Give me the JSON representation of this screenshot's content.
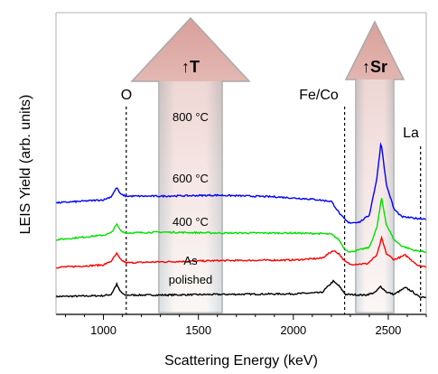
{
  "chart_data": {
    "type": "line",
    "title": "",
    "xlabel": "Scattering Energy (keV)",
    "ylabel": "LEIS Yield (arb. units)",
    "xlim": [
      750,
      2700
    ],
    "x_ticks": [
      1000,
      1500,
      2000,
      2500
    ],
    "y_ticks": [],
    "grid": false,
    "legend": "none",
    "series": [
      {
        "name": "As polished",
        "color": "#000000",
        "offset": 0.0,
        "points": [
          [
            750,
            0.05
          ],
          [
            1000,
            0.08
          ],
          [
            1040,
            0.12
          ],
          [
            1070,
            0.45
          ],
          [
            1085,
            0.25
          ],
          [
            1110,
            0.1
          ],
          [
            1300,
            0.1
          ],
          [
            1600,
            0.12
          ],
          [
            2000,
            0.14
          ],
          [
            2150,
            0.18
          ],
          [
            2210,
            0.55
          ],
          [
            2240,
            0.4
          ],
          [
            2275,
            0.12
          ],
          [
            2380,
            0.1
          ],
          [
            2430,
            0.18
          ],
          [
            2460,
            0.38
          ],
          [
            2490,
            0.2
          ],
          [
            2530,
            0.12
          ],
          [
            2590,
            0.34
          ],
          [
            2630,
            0.2
          ],
          [
            2660,
            0.05
          ],
          [
            2700,
            0.03
          ]
        ]
      },
      {
        "name": "400 °C",
        "color": "#ff0000",
        "offset": 1.0,
        "points": [
          [
            750,
            0.0
          ],
          [
            1000,
            0.08
          ],
          [
            1040,
            0.2
          ],
          [
            1070,
            0.45
          ],
          [
            1090,
            0.25
          ],
          [
            1120,
            0.15
          ],
          [
            1300,
            0.18
          ],
          [
            1600,
            0.22
          ],
          [
            2000,
            0.24
          ],
          [
            2150,
            0.3
          ],
          [
            2210,
            0.55
          ],
          [
            2240,
            0.45
          ],
          [
            2270,
            0.2
          ],
          [
            2300,
            0.1
          ],
          [
            2390,
            0.12
          ],
          [
            2440,
            0.4
          ],
          [
            2465,
            0.95
          ],
          [
            2490,
            0.45
          ],
          [
            2530,
            0.25
          ],
          [
            2590,
            0.4
          ],
          [
            2630,
            0.2
          ],
          [
            2660,
            0.05
          ],
          [
            2700,
            0.03
          ]
        ]
      },
      {
        "name": "600 °C",
        "color": "#00e000",
        "offset": 1.9,
        "points": [
          [
            750,
            0.0
          ],
          [
            1000,
            0.15
          ],
          [
            1040,
            0.22
          ],
          [
            1070,
            0.5
          ],
          [
            1090,
            0.3
          ],
          [
            1120,
            0.22
          ],
          [
            1300,
            0.25
          ],
          [
            1600,
            0.22
          ],
          [
            2000,
            0.22
          ],
          [
            2150,
            0.2
          ],
          [
            2200,
            0.18
          ],
          [
            2240,
            0.0
          ],
          [
            2270,
            -0.3
          ],
          [
            2300,
            -0.4
          ],
          [
            2400,
            -0.25
          ],
          [
            2440,
            0.4
          ],
          [
            2465,
            1.35
          ],
          [
            2490,
            0.5
          ],
          [
            2530,
            0.0
          ],
          [
            2570,
            -0.2
          ],
          [
            2640,
            -0.35
          ],
          [
            2700,
            -0.4
          ]
        ]
      },
      {
        "name": "800 °C",
        "color": "#0000ff",
        "offset": 3.1,
        "points": [
          [
            750,
            0.0
          ],
          [
            1000,
            0.1
          ],
          [
            1040,
            0.2
          ],
          [
            1070,
            0.5
          ],
          [
            1090,
            0.28
          ],
          [
            1120,
            0.22
          ],
          [
            1300,
            0.22
          ],
          [
            1600,
            0.25
          ],
          [
            1900,
            0.2
          ],
          [
            2100,
            0.12
          ],
          [
            2200,
            0.05
          ],
          [
            2250,
            -0.4
          ],
          [
            2290,
            -0.65
          ],
          [
            2350,
            -0.62
          ],
          [
            2400,
            -0.4
          ],
          [
            2440,
            0.8
          ],
          [
            2462,
            2.0
          ],
          [
            2490,
            0.6
          ],
          [
            2530,
            -0.2
          ],
          [
            2570,
            -0.45
          ],
          [
            2640,
            -0.5
          ],
          [
            2700,
            -0.52
          ]
        ]
      }
    ],
    "annotations": {
      "o_label": "O",
      "fe_label": "Fe/Co",
      "la_label": "La",
      "t_arrow": "↑T",
      "sr_arrow": "↑Sr",
      "cond_800": "800 °C",
      "cond_600": "600 °C",
      "cond_400": "400 °C",
      "cond_as1": "As",
      "cond_as2": "polished"
    },
    "reference_lines_x": [
      1120,
      2270,
      2670
    ]
  }
}
